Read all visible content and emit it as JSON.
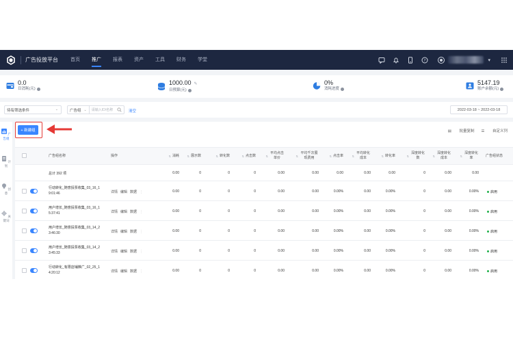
{
  "nav": {
    "brand": "广告投放平台",
    "tabs": [
      {
        "label": "首页",
        "active": false
      },
      {
        "label": "推广",
        "active": true
      },
      {
        "label": "报表",
        "active": false
      },
      {
        "label": "资产",
        "active": false
      },
      {
        "label": "工具",
        "active": false
      },
      {
        "label": "财务",
        "active": false
      },
      {
        "label": "学堂",
        "active": false
      }
    ],
    "right_icons": [
      "message-icon",
      "bell-icon",
      "mobile-icon",
      "help-icon"
    ],
    "user_caret": "▾"
  },
  "stats": [
    {
      "value": "0.0",
      "label": "日消耗(元)",
      "icon": "wallet-icon"
    },
    {
      "value": "1000.00",
      "label": "日预算(元)",
      "icon": "coins-icon"
    },
    {
      "value": "0%",
      "label": "消耗进度",
      "icon": "pie-progress-icon"
    },
    {
      "value": "5147.19",
      "label": "账户余额(元)",
      "icon": "account-balance-icon"
    }
  ],
  "filter": {
    "preset_select": "待有筛选条件",
    "group_label": "广告组",
    "search_placeholder": "请输入ID/名称",
    "clear_link": "清空",
    "date_range": "2022-03-18  ~  2022-03-18"
  },
  "rail": [
    {
      "label": "广告组",
      "active": true
    },
    {
      "label": "计划",
      "active": false
    },
    {
      "label": "创意",
      "active": false
    },
    {
      "label": "关键词",
      "active": false
    }
  ],
  "toolbar": {
    "new_button": "+ 新建组",
    "batch": "批量复制",
    "custom_cols": "自定义列"
  },
  "columns": [
    "广告组名称",
    "操作",
    "消耗",
    "展示数",
    "转化数",
    "点击数",
    "平均点击单价",
    "平均千次展现费用",
    "点击率",
    "平均转化成本",
    "转化率",
    "深度转化数",
    "深度转化成本",
    "深度转化率",
    "广告组状态"
  ],
  "total_row": {
    "label": "总计 392 项",
    "values": [
      "0.00",
      "0",
      "0",
      "0",
      "0.00",
      "0.00",
      "0.00",
      "0.00",
      "0.00",
      "0",
      "0.00",
      "0.00"
    ]
  },
  "row_ops": [
    "详情",
    "编辑",
    "数据"
  ],
  "rows": [
    {
      "name_line1": "行动转化_随意投票收集_03_16_1",
      "name_line2": "9:01:46",
      "values": [
        "0.00",
        "0",
        "0",
        "0",
        "0.00",
        "0.00",
        "0.00%",
        "0.00",
        "0.00%",
        "0",
        "0.00",
        "0.00%"
      ],
      "status": "启用"
    },
    {
      "name_line1": "用户增长_随意投票收集_03_16_1",
      "name_line2": "5:37:41",
      "values": [
        "0.00",
        "0",
        "0",
        "0",
        "0.00",
        "0.00",
        "0.00%",
        "0.00",
        "0.00%",
        "0",
        "0.00",
        "0.00%"
      ],
      "status": "启用"
    },
    {
      "name_line1": "用户增长_随意投票收集_03_14_2",
      "name_line2": "3:46:30",
      "values": [
        "0.00",
        "0",
        "0",
        "0",
        "0.00",
        "0.00",
        "0.00%",
        "0.00",
        "0.00%",
        "0",
        "0.00",
        "0.00%"
      ],
      "status": "启用"
    },
    {
      "name_line1": "用户增长_随意投票收集_03_14_2",
      "name_line2": "3:45:33",
      "values": [
        "0.00",
        "0",
        "0",
        "0",
        "0.00",
        "0.00",
        "0.00%",
        "0.00",
        "0.00%",
        "0",
        "0.00",
        "0.00%"
      ],
      "status": "启用"
    },
    {
      "name_line1": "行动转化_有限店铺推广_02_25_1",
      "name_line2": "4:20:12",
      "values": [
        "0.00",
        "0",
        "0",
        "0",
        "0.00",
        "0.00",
        "0.00%",
        "0.00",
        "0.00%",
        "0",
        "0.00",
        "0.00%"
      ],
      "status": "启用"
    }
  ]
}
